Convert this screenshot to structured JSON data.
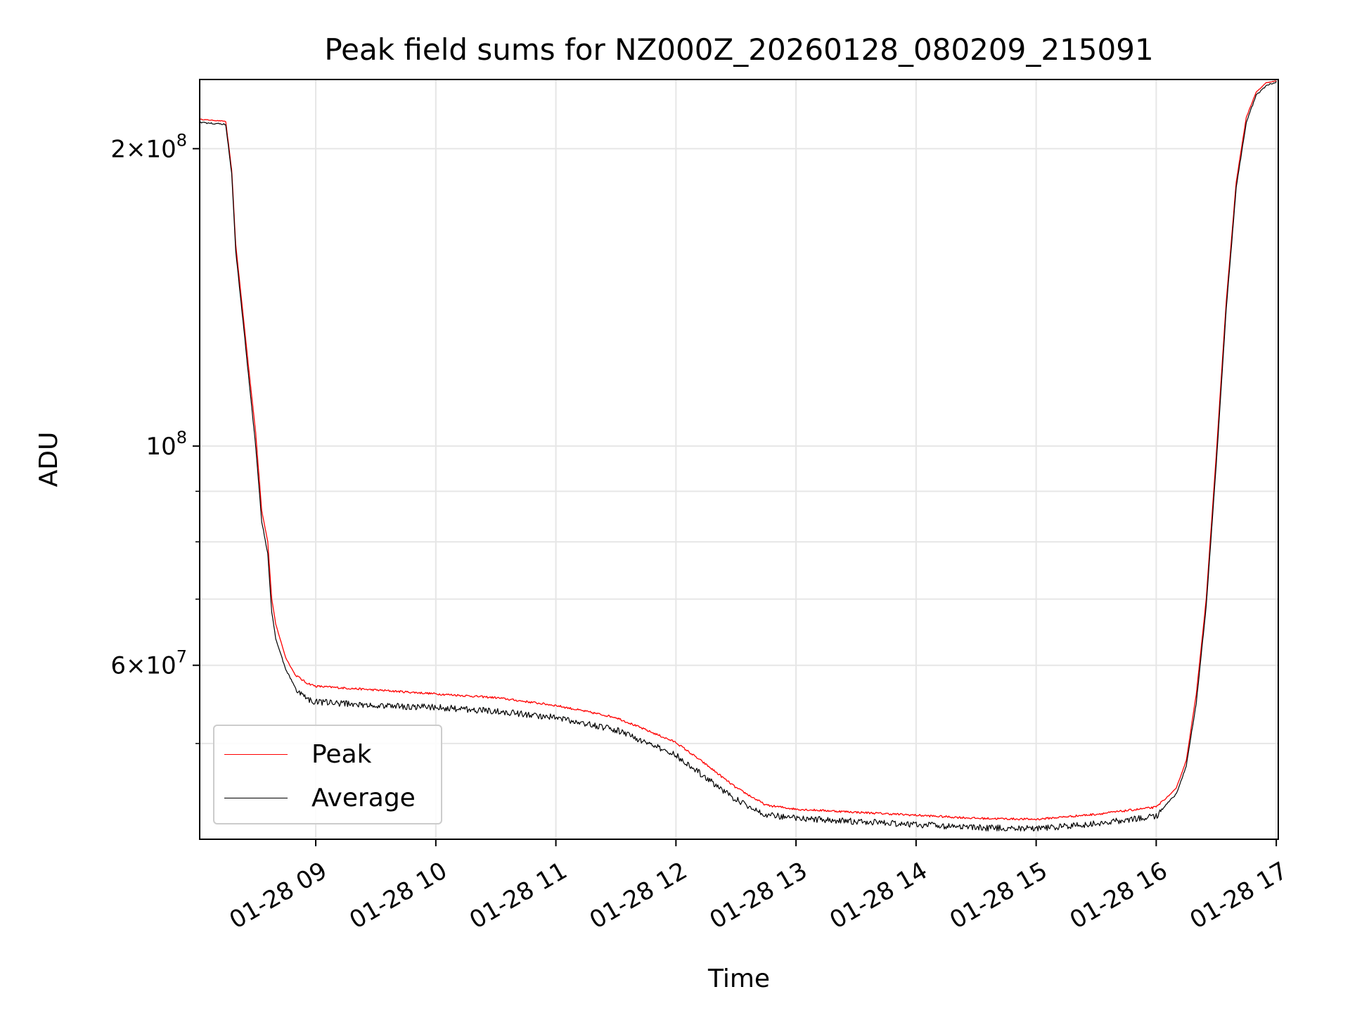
{
  "chart_data": {
    "type": "line",
    "title": "Peak field sums for NZ000Z_20260128_080209_215091",
    "xlabel": "Time",
    "ylabel": "ADU",
    "yscale": "log",
    "ylim": [
      40000000,
      235000000
    ],
    "xlim": [
      "01-28 08:02",
      "01-28 17:01"
    ],
    "x_ticks": [
      "01-28 09",
      "01-28 10",
      "01-28 11",
      "01-28 12",
      "01-28 13",
      "01-28 14",
      "01-28 15",
      "01-28 16",
      "01-28 17"
    ],
    "y_ticks": [
      {
        "value": 60000000,
        "mantissa": "6",
        "exp": "7"
      },
      {
        "value": 100000000,
        "mantissa": "",
        "exp": "8"
      },
      {
        "value": 200000000,
        "mantissa": "2",
        "exp": "8"
      }
    ],
    "grid": true,
    "legend_position": "lower-left",
    "series": [
      {
        "name": "Peak",
        "color": "#ff0000",
        "x": [
          "01-28 08:02",
          "01-28 08:15",
          "01-28 08:18",
          "01-28 08:20",
          "01-28 08:25",
          "01-28 08:30",
          "01-28 08:33",
          "01-28 08:36",
          "01-28 08:38",
          "01-28 08:40",
          "01-28 08:45",
          "01-28 08:50",
          "01-28 08:55",
          "01-28 09:00",
          "01-28 09:30",
          "01-28 10:00",
          "01-28 10:30",
          "01-28 11:00",
          "01-28 11:30",
          "01-28 12:00",
          "01-28 12:15",
          "01-28 12:30",
          "01-28 12:45",
          "01-28 13:00",
          "01-28 13:30",
          "01-28 14:00",
          "01-28 14:30",
          "01-28 15:00",
          "01-28 15:30",
          "01-28 16:00",
          "01-28 16:10",
          "01-28 16:15",
          "01-28 16:20",
          "01-28 16:25",
          "01-28 16:30",
          "01-28 16:35",
          "01-28 16:40",
          "01-28 16:45",
          "01-28 16:50",
          "01-28 16:55",
          "01-28 17:00"
        ],
        "values": [
          214000000,
          213000000,
          190000000,
          160000000,
          128000000,
          103000000,
          86000000,
          80000000,
          70000000,
          66000000,
          61000000,
          58500000,
          57500000,
          57000000,
          56500000,
          56000000,
          55500000,
          54500000,
          53000000,
          50000000,
          47500000,
          45000000,
          43200000,
          42800000,
          42500000,
          42200000,
          41900000,
          41800000,
          42300000,
          43000000,
          45000000,
          48000000,
          56000000,
          70000000,
          98000000,
          140000000,
          185000000,
          215000000,
          228000000,
          233000000,
          234000000
        ]
      },
      {
        "name": "Average",
        "color": "#000000",
        "x": [
          "01-28 08:02",
          "01-28 08:15",
          "01-28 08:18",
          "01-28 08:20",
          "01-28 08:25",
          "01-28 08:30",
          "01-28 08:33",
          "01-28 08:36",
          "01-28 08:38",
          "01-28 08:40",
          "01-28 08:45",
          "01-28 08:50",
          "01-28 08:55",
          "01-28 09:00",
          "01-28 09:30",
          "01-28 10:00",
          "01-28 10:30",
          "01-28 11:00",
          "01-28 11:30",
          "01-28 12:00",
          "01-28 12:15",
          "01-28 12:30",
          "01-28 12:45",
          "01-28 13:00",
          "01-28 13:30",
          "01-28 14:00",
          "01-28 14:30",
          "01-28 15:00",
          "01-28 15:30",
          "01-28 16:00",
          "01-28 16:10",
          "01-28 16:15",
          "01-28 16:20",
          "01-28 16:25",
          "01-28 16:30",
          "01-28 16:35",
          "01-28 16:40",
          "01-28 16:45",
          "01-28 16:50",
          "01-28 16:55",
          "01-28 17:00"
        ],
        "values": [
          213000000,
          212000000,
          189000000,
          158000000,
          126000000,
          100000000,
          84000000,
          78000000,
          68000000,
          64000000,
          59500000,
          57000000,
          56000000,
          55500000,
          55000000,
          54800000,
          54300000,
          53500000,
          52000000,
          49000000,
          46500000,
          44200000,
          42700000,
          42300000,
          42000000,
          41700000,
          41400000,
          41300000,
          41800000,
          42500000,
          44500000,
          47500000,
          55000000,
          69000000,
          96000000,
          138000000,
          183000000,
          213000000,
          227000000,
          232000000,
          234000000
        ]
      }
    ]
  }
}
